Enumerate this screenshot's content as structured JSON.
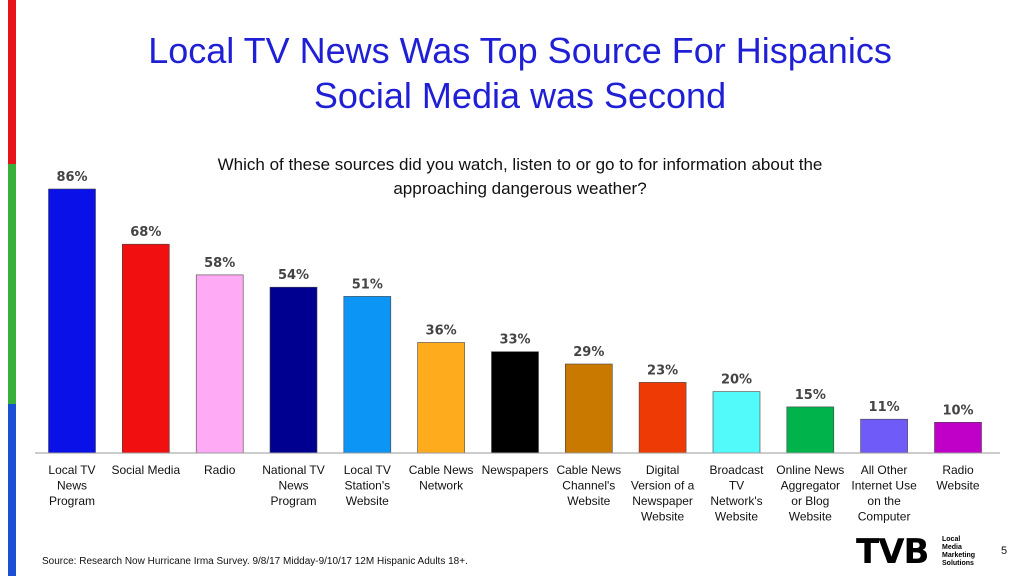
{
  "title_line1": "Local TV News Was Top Source For Hispanics",
  "title_line2": "Social Media was Second",
  "question_line1": "Which of these sources did you watch, listen to or go to for information about the",
  "question_line2": "approaching dangerous weather?",
  "source": "Source: Research Now Hurricane Irma Survey. 9/8/17 Midday-9/10/17 12M Hispanic Adults 18+.",
  "page_number": "5",
  "logo": {
    "mark": "TVB",
    "line1": "Local",
    "line2": "Media",
    "line3": "Marketing",
    "line4": "Solutions"
  },
  "stripe_colors": [
    "#e8141c",
    "#38b03a",
    "#1b4fd6"
  ],
  "chart_data": {
    "type": "bar",
    "title": "Local TV News Was Top Source For Hispanics Social Media was Second",
    "subtitle": "Which of these sources did you watch, listen to or go to for information about the approaching dangerous weather?",
    "ylim": [
      0,
      100
    ],
    "grid": false,
    "legend": "none",
    "unit": "%",
    "categories": [
      [
        "Local TV",
        "News",
        "Program"
      ],
      [
        "Social Media"
      ],
      [
        "Radio"
      ],
      [
        "National TV",
        "News",
        "Program"
      ],
      [
        "Local TV",
        "Station's",
        "Website"
      ],
      [
        "Cable News",
        "Network"
      ],
      [
        "Newspapers"
      ],
      [
        "Cable News",
        "Channel's",
        "Website"
      ],
      [
        "Digital",
        "Version of a",
        "Newspaper",
        "Website"
      ],
      [
        "Broadcast",
        "TV",
        "Network's",
        "Website"
      ],
      [
        "Online News",
        "Aggregator",
        "or Blog",
        "Website"
      ],
      [
        "All Other",
        "Internet Use",
        "on the",
        "Computer"
      ],
      [
        "Radio",
        "Website"
      ]
    ],
    "values": [
      86,
      68,
      58,
      54,
      51,
      36,
      33,
      29,
      23,
      20,
      15,
      11,
      10
    ],
    "value_labels": [
      "86%",
      "68%",
      "58%",
      "54%",
      "51%",
      "36%",
      "33%",
      "29%",
      "23%",
      "20%",
      "15%",
      "11%",
      "10%"
    ],
    "colors": [
      "#0a10e8",
      "#f20f0f",
      "#ffaaf4",
      "#000090",
      "#0d95f5",
      "#ffab1e",
      "#000000",
      "#c97800",
      "#ee3a05",
      "#52fafa",
      "#00b44b",
      "#6f5bf7",
      "#c000c8"
    ]
  }
}
